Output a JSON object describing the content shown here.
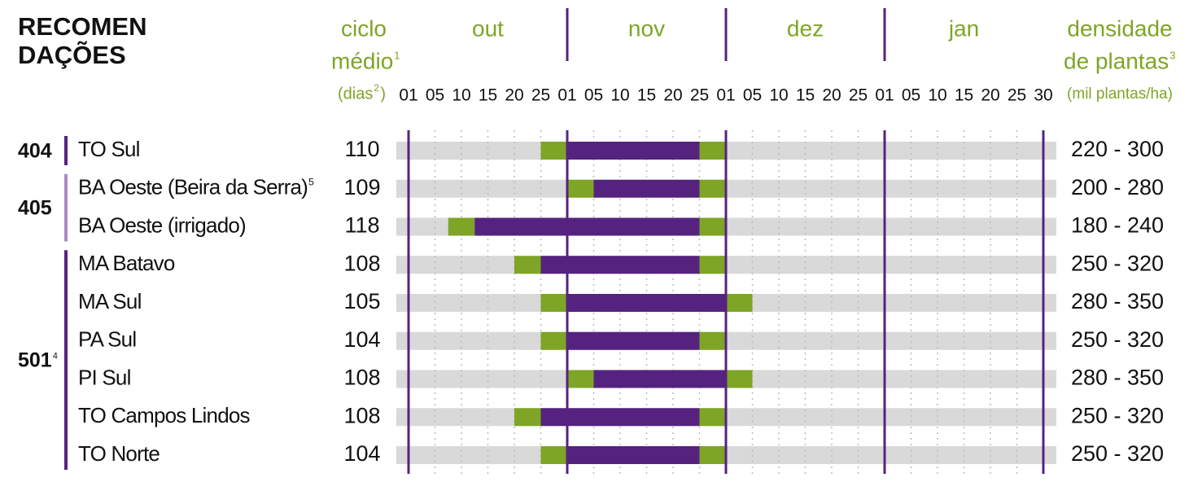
{
  "header": {
    "title": [
      "RECOMEN",
      "DAÇÕES"
    ]
  },
  "cycle_header": {
    "line1": "ciclo",
    "line2": "médio",
    "line2_sup": "1",
    "line3": "(dias",
    "line3_sup": "2",
    "line3_end": ")"
  },
  "density_header": {
    "line1": "densidade",
    "line2": "de plantas",
    "line2_sup": "3",
    "line3": "(mil plantas/ha)"
  },
  "months": [
    {
      "name": "out",
      "days": [
        "01",
        "05",
        "10",
        "15",
        "20",
        "25"
      ]
    },
    {
      "name": "nov",
      "days": [
        "01",
        "05",
        "10",
        "15",
        "20",
        "25"
      ]
    },
    {
      "name": "dez",
      "days": [
        "01",
        "05",
        "10",
        "15",
        "20",
        "25"
      ]
    },
    {
      "name": "jan",
      "days": [
        "01",
        "05",
        "10",
        "15",
        "20",
        "25",
        "30"
      ]
    }
  ],
  "groups": [
    {
      "code": "404",
      "color": "#55237f",
      "rows": [
        {
          "region": "TO Sul",
          "cycle": 110,
          "density": "220 - 300",
          "window": [
            5,
            6,
            11,
            12
          ]
        }
      ]
    },
    {
      "code": "405",
      "color": "#a98bc4",
      "rows": [
        {
          "region": "BA Oeste (Beira da Serra)",
          "region_sup": "5",
          "cycle": 109,
          "density": "200 - 280",
          "window": [
            6,
            7,
            11,
            12
          ]
        },
        {
          "region": "BA Oeste (irrigado)",
          "cycle": 118,
          "density": "180 - 240",
          "window": [
            1.5,
            2.5,
            11,
            12
          ]
        }
      ]
    },
    {
      "code": "501",
      "code_sup": "4",
      "color": "#55237f",
      "rows": [
        {
          "region": "MA Batavo",
          "cycle": 108,
          "density": "250 - 320",
          "window": [
            4,
            5,
            11,
            12
          ]
        },
        {
          "region": "MA Sul",
          "cycle": 105,
          "density": "280 - 350",
          "window": [
            5,
            6,
            12,
            13
          ]
        },
        {
          "region": "PA Sul",
          "cycle": 104,
          "density": "250 - 320",
          "window": [
            5,
            6,
            11,
            12
          ]
        },
        {
          "region": "PI Sul",
          "cycle": 108,
          "density": "280 - 350",
          "window": [
            6,
            7,
            12,
            13
          ]
        },
        {
          "region": "TO Campos Lindos",
          "cycle": 108,
          "density": "250 - 320",
          "window": [
            4,
            5,
            11,
            12
          ]
        },
        {
          "region": "TO Norte",
          "cycle": 104,
          "density": "250 - 320",
          "window": [
            5,
            6,
            11,
            12
          ]
        }
      ]
    }
  ]
}
